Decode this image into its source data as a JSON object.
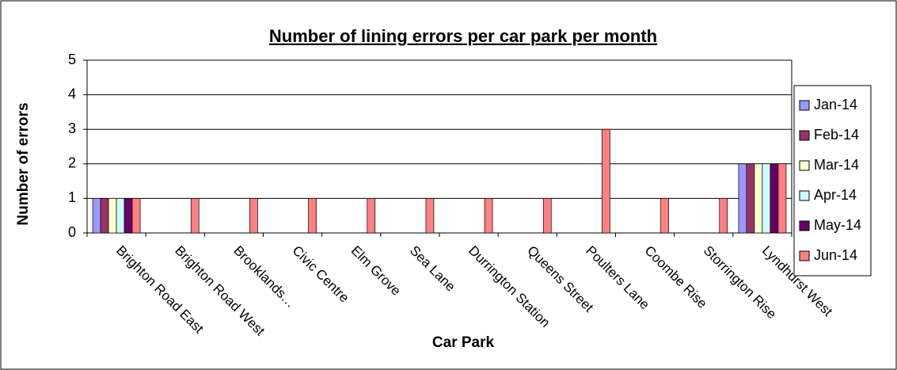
{
  "chart_data": {
    "type": "bar",
    "title": "Number of lining errors per car park per month",
    "x_label": "Car Park",
    "y_label": "Number of errors",
    "categories": [
      "Brighton Road East",
      "Brighton Road West",
      "Brooklands…",
      "Civic Centre",
      "Elm Grove",
      "Sea Lane",
      "Durrington Station",
      "Queens Street",
      "Poulters Lane",
      "Coombe Rise",
      "Storrington Rise",
      "Lyndhurst West"
    ],
    "series": [
      {
        "name": "Jan-14",
        "color": "#9999ff",
        "values": [
          1,
          0,
          0,
          0,
          0,
          0,
          0,
          0,
          0,
          0,
          0,
          2
        ]
      },
      {
        "name": "Feb-14",
        "color": "#993366",
        "values": [
          1,
          0,
          0,
          0,
          0,
          0,
          0,
          0,
          0,
          0,
          0,
          2
        ]
      },
      {
        "name": "Mar-14",
        "color": "#ffffcc",
        "values": [
          1,
          0,
          0,
          0,
          0,
          0,
          0,
          0,
          0,
          0,
          0,
          2
        ]
      },
      {
        "name": "Apr-14",
        "color": "#ccffff",
        "values": [
          1,
          0,
          0,
          0,
          0,
          0,
          0,
          0,
          0,
          0,
          0,
          2
        ]
      },
      {
        "name": "May-14",
        "color": "#660066",
        "values": [
          1,
          0,
          0,
          0,
          0,
          0,
          0,
          0,
          0,
          0,
          0,
          2
        ]
      },
      {
        "name": "Jun-14",
        "color": "#ff8080",
        "values": [
          1,
          1,
          1,
          1,
          1,
          1,
          1,
          1,
          3,
          1,
          1,
          2
        ]
      }
    ],
    "ylim": [
      0,
      5
    ],
    "yticks": [
      0,
      1,
      2,
      3,
      4,
      5
    ],
    "grid": true,
    "legend": "right"
  }
}
